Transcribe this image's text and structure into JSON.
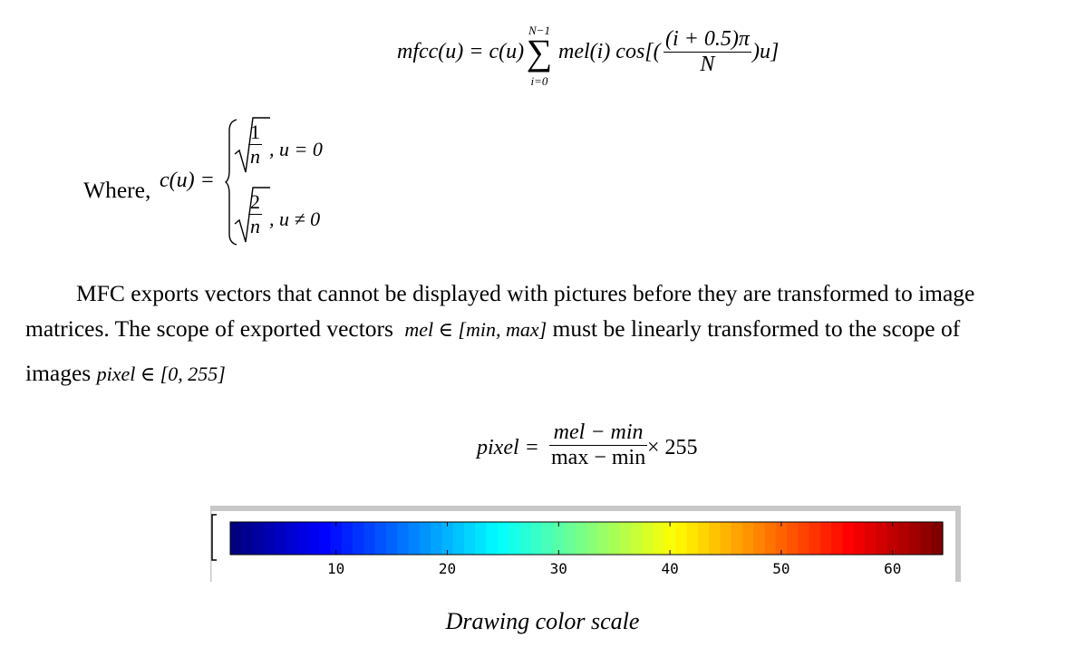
{
  "equation_mfcc": {
    "lhs": "mfcc(u) = c(u)",
    "sum_upper": "N−1",
    "sum_lower": "i=0",
    "sum_symbol": "∑",
    "body": "mel(i) cos[(",
    "frac_num": "(i + 0.5)π",
    "frac_den": "N",
    "tail": ")u]"
  },
  "where_label": "Where,",
  "piecewise": {
    "lhs": "c(u) =",
    "case1_num": "1",
    "case1_den": "n",
    "case1_cond": ", u = 0",
    "case2_num": "2",
    "case2_den": "n",
    "case2_cond": ", u ≠ 0"
  },
  "paragraph": {
    "line1": "MFC exports vectors that cannot be displayed with pictures before they are transformed to image",
    "line2_a": "matrices. The scope of exported vectors",
    "line2_math": "mel ∈ [min, max]",
    "line2_b": "must be linearly transformed to the scope of",
    "line3_a": "images",
    "line3_math": "pixel ∈ [0, 255]"
  },
  "equation_pixel": {
    "lhs": "pixel =",
    "frac_num": "mel − min",
    "frac_den": "max − min",
    "rhs": "× 255"
  },
  "chart_data": {
    "type": "heatmap",
    "colormap": "jet",
    "range": [
      1,
      64
    ],
    "ticks": [
      10,
      20,
      30,
      40,
      50,
      60
    ],
    "tick_labels": [
      "10",
      "20",
      "30",
      "40",
      "50",
      "60"
    ]
  },
  "caption": "Drawing color scale"
}
